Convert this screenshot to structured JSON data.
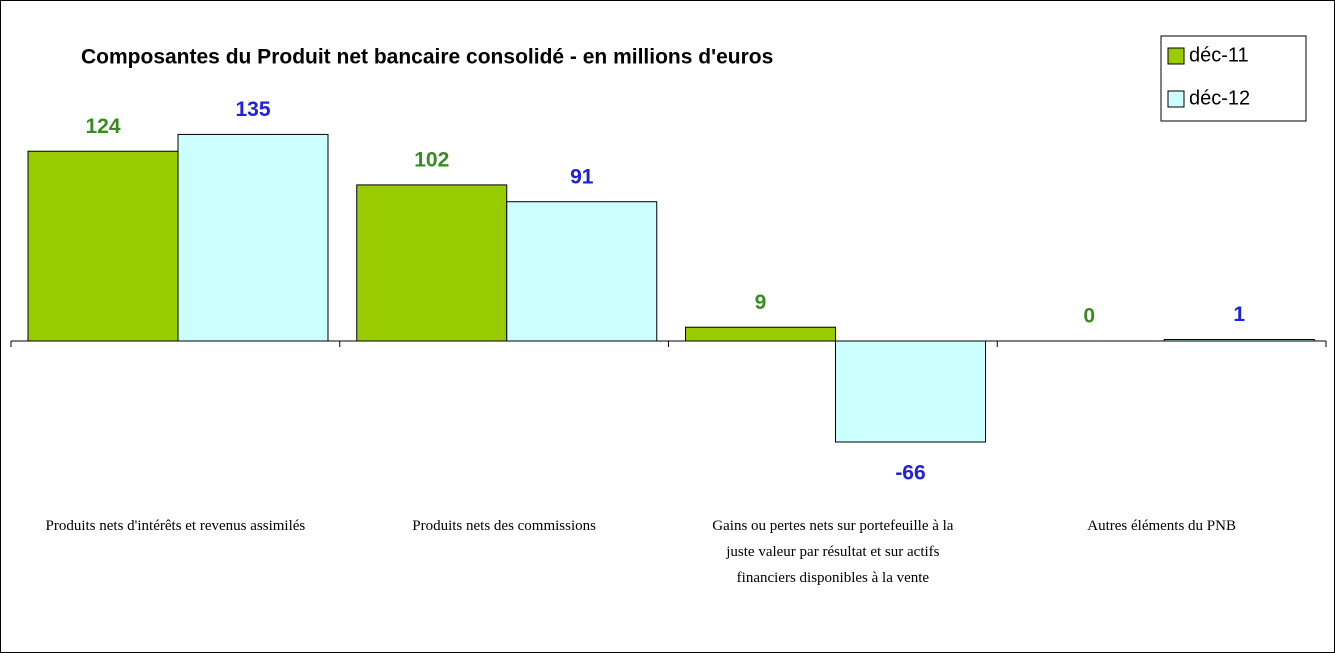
{
  "chart_data": {
    "type": "bar",
    "title": "Composantes du Produit net bancaire consolidé - en millions d'euros",
    "categories": [
      "Produits nets d'intérêts et revenus assimilés",
      "Produits nets des commissions",
      "Gains ou pertes nets sur portefeuille à la juste valeur par résultat et sur actifs financiers disponibles à la vente",
      "Autres éléments du PNB"
    ],
    "series": [
      {
        "name": "déc-11",
        "color": "#99cc00",
        "label_color": "#3a8a22",
        "values": [
          124,
          102,
          9,
          0
        ]
      },
      {
        "name": "déc-12",
        "color": "#ccffff",
        "label_color": "#2020e0",
        "values": [
          135,
          91,
          -66,
          1
        ]
      }
    ],
    "legend": "top-right",
    "grid": false
  }
}
